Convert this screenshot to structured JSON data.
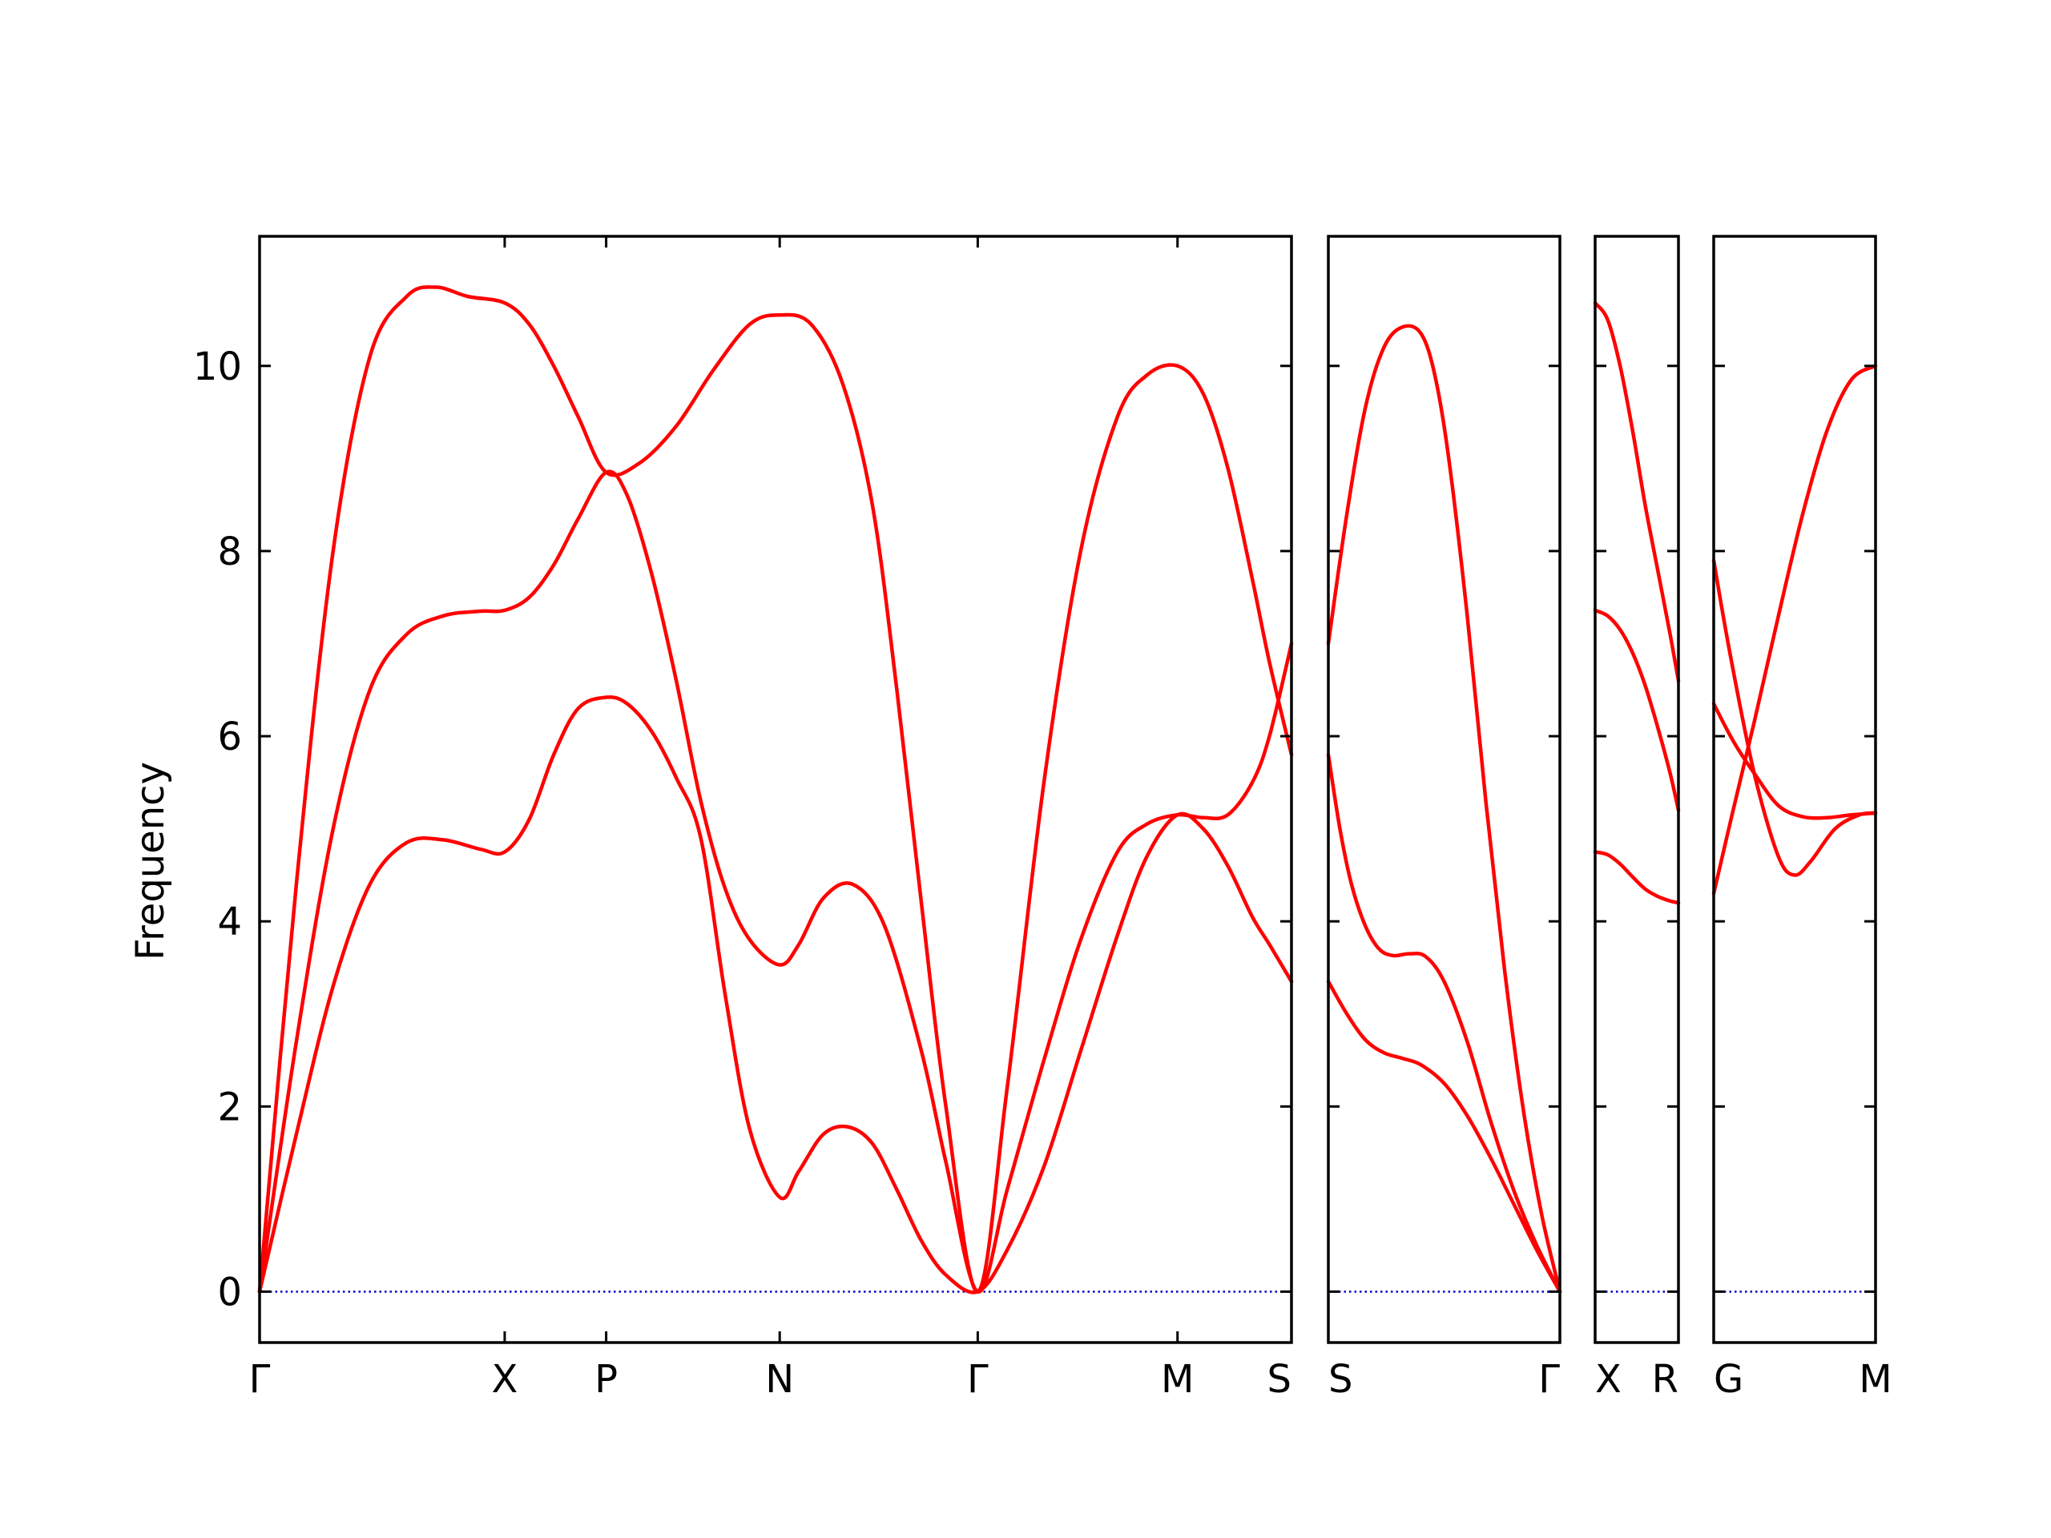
{
  "chart_data": {
    "type": "line",
    "ylabel": "Frequency",
    "ylim": [
      -0.55,
      11.4
    ],
    "yticks": [
      0,
      2,
      4,
      6,
      8,
      10
    ],
    "colors": {
      "band": "#ff0000",
      "zero": "#0000cc",
      "axes": "#000000"
    },
    "segments": [
      {
        "ticks": [
          {
            "x": 0,
            "label": "Γ"
          },
          {
            "x": 1.0,
            "label": "X"
          },
          {
            "x": 1.414,
            "label": "P"
          },
          {
            "x": 2.122,
            "label": "N"
          },
          {
            "x": 2.93,
            "label": "Γ"
          },
          {
            "x": 3.745,
            "label": "M"
          },
          {
            "x": 4.21,
            "label": "S"
          }
        ],
        "series": [
          {
            "x": [
              0,
              0.15,
              0.3,
              0.45,
              0.6,
              0.72,
              0.85,
              1.0,
              1.1,
              1.2,
              1.3,
              1.414,
              1.55,
              1.7,
              1.85,
              2.0,
              2.122,
              2.25,
              2.38,
              2.5,
              2.6,
              2.7,
              2.8,
              2.93,
              3.05,
              3.2,
              3.35,
              3.5,
              3.62,
              3.745,
              3.85,
              3.95,
              4.05,
              4.12,
              4.21
            ],
            "y": [
              0,
              4.4,
              8.0,
              10.1,
              10.75,
              10.85,
              10.75,
              10.68,
              10.45,
              10.0,
              9.45,
              8.85,
              8.95,
              9.35,
              9.95,
              10.45,
              10.55,
              10.45,
              9.8,
              8.5,
              6.5,
              4.2,
              2.0,
              0,
              2.2,
              5.5,
              8.0,
              9.45,
              9.9,
              10.0,
              9.7,
              8.9,
              7.7,
              6.8,
              5.8
            ]
          },
          {
            "x": [
              0,
              0.15,
              0.3,
              0.45,
              0.6,
              0.75,
              0.9,
              1.0,
              1.1,
              1.2,
              1.3,
              1.414,
              1.5,
              1.6,
              1.7,
              1.8,
              1.9,
              2.0,
              2.122,
              2.2,
              2.3,
              2.42,
              2.55,
              2.7,
              2.8,
              2.93,
              3.05,
              3.2,
              3.35,
              3.5,
              3.62,
              3.745,
              3.85,
              3.95,
              4.05,
              4.12,
              4.21
            ],
            "y": [
              0,
              2.7,
              5.0,
              6.5,
              7.1,
              7.3,
              7.35,
              7.36,
              7.5,
              7.85,
              8.35,
              8.85,
              8.6,
              7.75,
              6.6,
              5.3,
              4.35,
              3.8,
              3.53,
              3.75,
              4.25,
              4.4,
              3.95,
              2.6,
              1.4,
              0,
              1.1,
              2.5,
              3.8,
              4.75,
              5.05,
              5.15,
              5.12,
              5.15,
              5.5,
              6.0,
              7.0
            ]
          },
          {
            "x": [
              0,
              0.15,
              0.3,
              0.45,
              0.6,
              0.75,
              0.9,
              1.0,
              1.1,
              1.2,
              1.3,
              1.414,
              1.5,
              1.6,
              1.7,
              1.8,
              1.9,
              2.0,
              2.122,
              2.2,
              2.3,
              2.4,
              2.5,
              2.6,
              2.7,
              2.8,
              2.93,
              3.05,
              3.2,
              3.35,
              3.5,
              3.62,
              3.745,
              3.85,
              3.95,
              4.05,
              4.12,
              4.21
            ],
            "y": [
              0,
              1.7,
              3.3,
              4.4,
              4.85,
              4.88,
              4.78,
              4.75,
              5.1,
              5.8,
              6.3,
              6.42,
              6.35,
              6.05,
              5.55,
              4.9,
              3.2,
              1.75,
              1.02,
              1.3,
              1.7,
              1.78,
              1.6,
              1.1,
              0.55,
              0.18,
              0,
              0.45,
              1.35,
              2.6,
              3.85,
              4.7,
              5.15,
              5.0,
              4.6,
              4.05,
              3.75,
              3.35
            ]
          }
        ]
      },
      {
        "ticks": [
          {
            "x": 0,
            "label": "S"
          },
          {
            "x": 1.0,
            "label": "Γ"
          }
        ],
        "series": [
          {
            "x": [
              0,
              0.08,
              0.16,
              0.24,
              0.32,
              0.4,
              0.46,
              0.52,
              0.6,
              0.68,
              0.76,
              0.84,
              0.92,
              1.0
            ],
            "y": [
              7.0,
              8.4,
              9.55,
              10.2,
              10.42,
              10.35,
              9.9,
              9.0,
              7.3,
              5.3,
              3.5,
              2.0,
              0.85,
              0
            ]
          },
          {
            "x": [
              0,
              0.05,
              0.1,
              0.16,
              0.22,
              0.28,
              0.35,
              0.42,
              0.5,
              0.6,
              0.7,
              0.8,
              0.9,
              1.0
            ],
            "y": [
              5.8,
              5.0,
              4.4,
              3.95,
              3.7,
              3.63,
              3.65,
              3.62,
              3.35,
              2.7,
              1.85,
              1.1,
              0.5,
              0
            ]
          },
          {
            "x": [
              0,
              0.08,
              0.16,
              0.24,
              0.32,
              0.4,
              0.5,
              0.6,
              0.7,
              0.8,
              0.9,
              1.0
            ],
            "y": [
              3.35,
              3.0,
              2.72,
              2.58,
              2.52,
              2.45,
              2.25,
              1.9,
              1.45,
              0.95,
              0.45,
              0
            ]
          }
        ]
      },
      {
        "ticks": [
          {
            "x": 0,
            "label": "X"
          },
          {
            "x": 1.0,
            "label": "R"
          }
        ],
        "series": [
          {
            "x": [
              0,
              0.15,
              0.3,
              0.45,
              0.6,
              0.75,
              0.9,
              1.0
            ],
            "y": [
              10.68,
              10.5,
              10.0,
              9.3,
              8.5,
              7.8,
              7.1,
              6.6
            ]
          },
          {
            "x": [
              0,
              0.15,
              0.3,
              0.45,
              0.6,
              0.75,
              0.9,
              1.0
            ],
            "y": [
              7.36,
              7.3,
              7.15,
              6.9,
              6.55,
              6.1,
              5.6,
              5.2
            ]
          },
          {
            "x": [
              0,
              0.15,
              0.3,
              0.45,
              0.6,
              0.75,
              0.9,
              1.0
            ],
            "y": [
              4.75,
              4.72,
              4.62,
              4.48,
              4.35,
              4.27,
              4.22,
              4.2
            ]
          }
        ]
      },
      {
        "ticks": [
          {
            "x": 0,
            "label": "G"
          },
          {
            "x": 1.0,
            "label": "M"
          }
        ],
        "series": [
          {
            "x": [
              0,
              0.12,
              0.25,
              0.4,
              0.55,
              0.7,
              0.85,
              1.0
            ],
            "y": [
              4.3,
              5.2,
              6.15,
              7.3,
              8.4,
              9.3,
              9.85,
              10.0
            ]
          },
          {
            "x": [
              0,
              0.1,
              0.25,
              0.4,
              0.5,
              0.6,
              0.75,
              0.9,
              1.0
            ],
            "y": [
              7.9,
              6.9,
              5.6,
              4.7,
              4.5,
              4.65,
              5.0,
              5.15,
              5.17
            ]
          },
          {
            "x": [
              0,
              0.12,
              0.25,
              0.4,
              0.55,
              0.7,
              0.85,
              1.0
            ],
            "y": [
              6.35,
              5.95,
              5.6,
              5.25,
              5.13,
              5.12,
              5.15,
              5.17
            ]
          }
        ]
      }
    ]
  }
}
